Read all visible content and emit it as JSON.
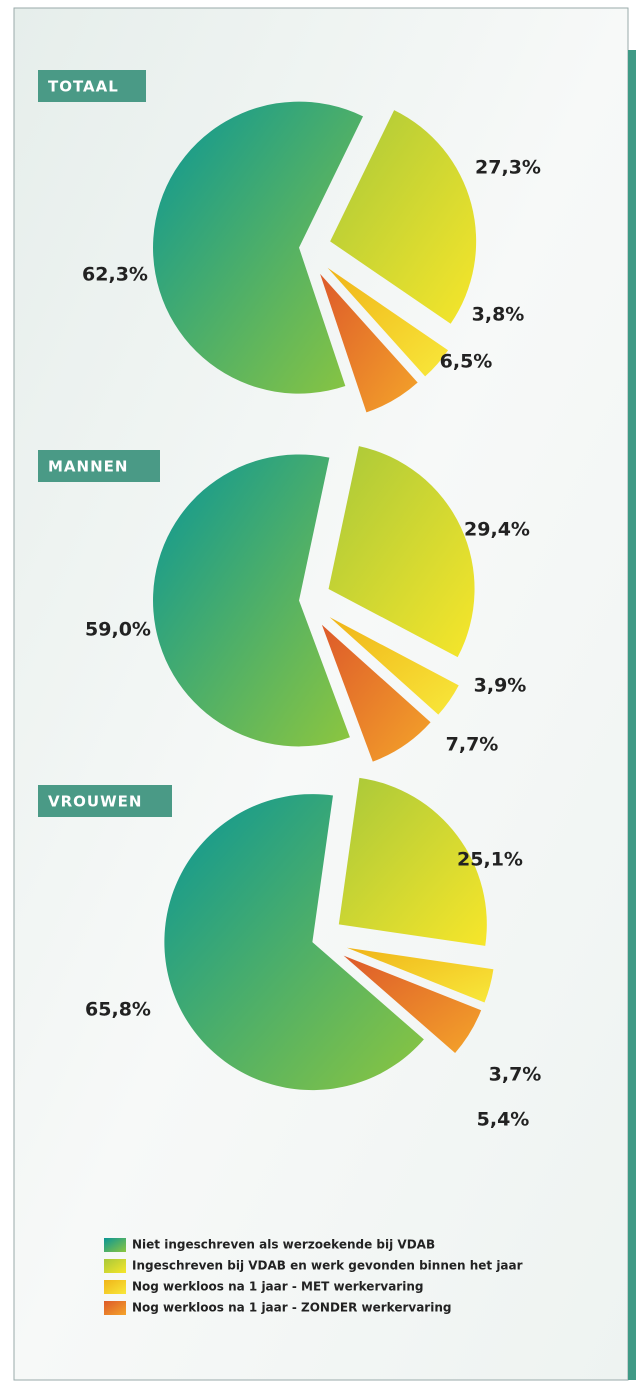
{
  "chart_data": [
    {
      "type": "pie",
      "title": "TOTAAL",
      "values": [
        62.3,
        27.3,
        3.8,
        6.5
      ],
      "value_labels": [
        "62,3%",
        "27,3%",
        "3,8%",
        "6,5%"
      ]
    },
    {
      "type": "pie",
      "title": "MANNEN",
      "values": [
        59.0,
        29.4,
        3.9,
        7.7
      ],
      "value_labels": [
        "59,0%",
        "29,4%",
        "3,9%",
        "7,7%"
      ]
    },
    {
      "type": "pie",
      "title": "VROUWEN",
      "values": [
        65.8,
        25.1,
        3.7,
        5.4
      ],
      "value_labels": [
        "65,8%",
        "25,1%",
        "3,7%",
        "5,4%"
      ]
    }
  ],
  "legend": [
    {
      "name": "Niet ingeschreven als werzoekende bij VDAB",
      "colors": [
        "#0a9696",
        "#8cc63f"
      ]
    },
    {
      "name": "Ingeschreven bij VDAB en werk gevonden binnen het jaar",
      "colors": [
        "#a8c83a",
        "#f7e62a"
      ]
    },
    {
      "name": "Nog werkloos na 1 jaar - MET werkervaring",
      "colors": [
        "#f0b419",
        "#f8e83a"
      ]
    },
    {
      "name": "Nog werkloos na 1 jaar - ZONDER werkervaring",
      "colors": [
        "#dd5a2a",
        "#f4a42a"
      ]
    }
  ]
}
